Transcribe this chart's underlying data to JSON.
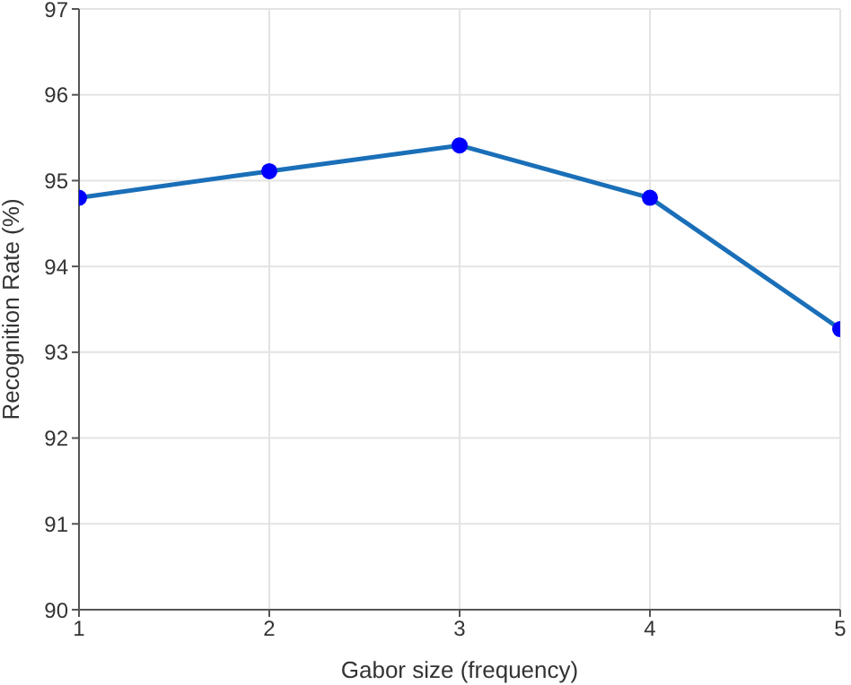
{
  "chart_data": {
    "type": "line",
    "xlabel": "Gabor size (frequency)",
    "ylabel": "Recognition Rate (%)",
    "x": [
      1,
      2,
      3,
      4,
      5
    ],
    "series": [
      {
        "color": "#1a6fb8",
        "values": [
          94.8,
          95.11,
          95.41,
          94.8,
          93.27
        ]
      }
    ],
    "xlim": [
      1,
      5
    ],
    "xticks": [
      1,
      2,
      3,
      4,
      5
    ],
    "ylim": [
      90,
      97
    ],
    "yticks": [
      90,
      91,
      92,
      93,
      94,
      95,
      96,
      97
    ],
    "grid": true,
    "marker": "circle",
    "line_style": "solid",
    "legend": false
  }
}
